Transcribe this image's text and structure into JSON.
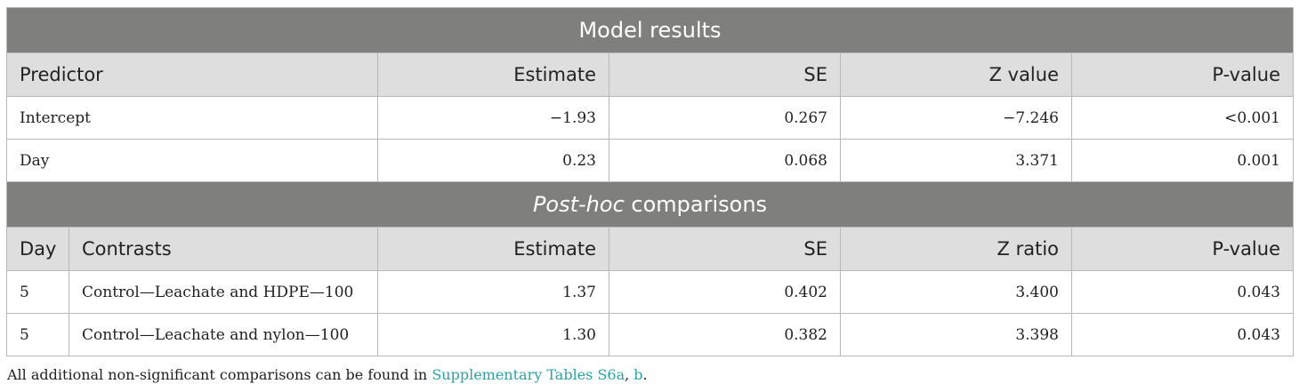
{
  "model": {
    "title": "Model results",
    "header": {
      "predictor": "Predictor",
      "estimate": "Estimate",
      "se": "SE",
      "stat": "Z value",
      "p": "P-value"
    },
    "rows": [
      {
        "predictor": "Intercept",
        "estimate": "−1.93",
        "se": "0.267",
        "stat": "−7.246",
        "p": "<0.001"
      },
      {
        "predictor": "Day",
        "estimate": "0.23",
        "se": "0.068",
        "stat": "3.371",
        "p": "0.001"
      }
    ]
  },
  "posthoc": {
    "title_italic": "Post-hoc",
    "title_rest": " comparisons",
    "header": {
      "day": "Day",
      "contrasts": "Contrasts",
      "estimate": "Estimate",
      "se": "SE",
      "stat": "Z ratio",
      "p": "P-value"
    },
    "rows": [
      {
        "day": "5",
        "contrast": "Control—Leachate and HDPE—100",
        "estimate": "1.37",
        "se": "0.402",
        "stat": "3.400",
        "p": "0.043"
      },
      {
        "day": "5",
        "contrast": "Control—Leachate and nylon—100",
        "estimate": "1.30",
        "se": "0.382",
        "stat": "3.398",
        "p": "0.043"
      }
    ]
  },
  "footnote": {
    "text_before": "All additional non-significant comparisons can be found in ",
    "link1": "Supplementary Tables S6a",
    "separator": ", ",
    "link2": "b",
    "text_after": "."
  },
  "colors": {
    "section_header_bg": "#7f807e",
    "column_header_bg": "#dedede",
    "link": "#2aa3a8"
  }
}
